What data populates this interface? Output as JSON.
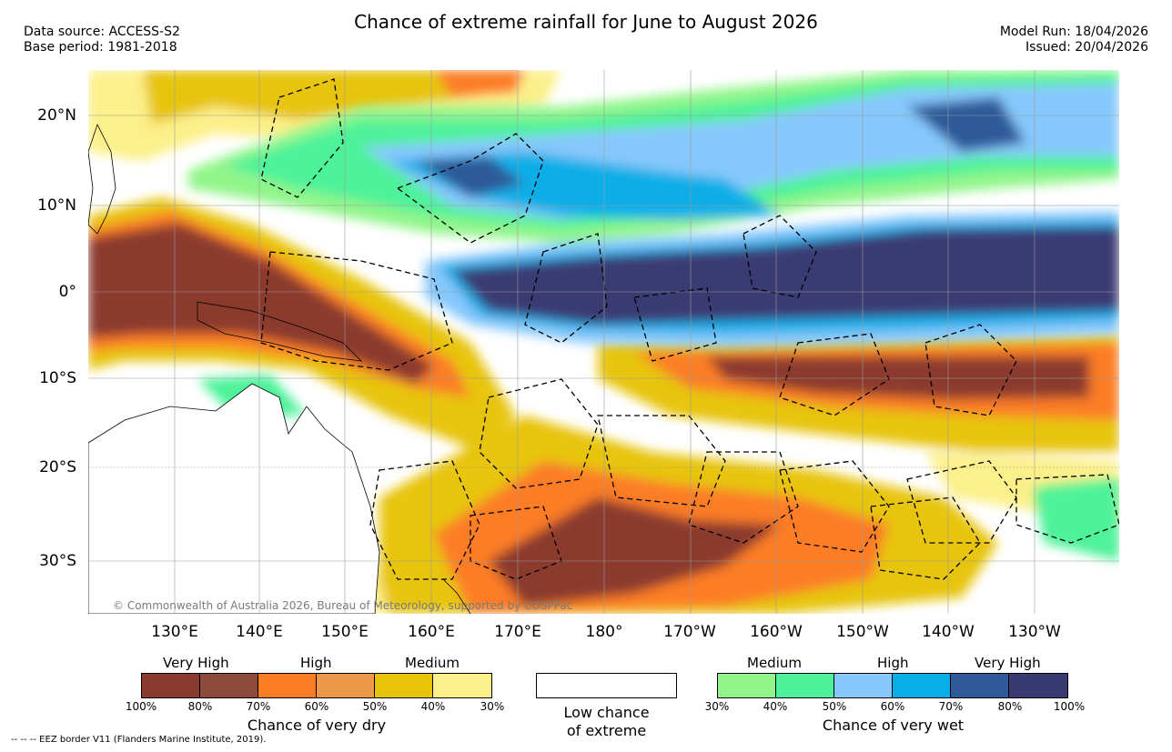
{
  "title": "Chance of extreme rainfall for June to August 2026",
  "data_source": "Data source: ACCESS-S2",
  "base_period": "Base period: 1981-2018",
  "model_run": "Model Run: 18/04/2026",
  "issued": "Issued: 20/04/2026",
  "copyright": "© Commonwealth of Australia 2026, Bureau of Meteorology, supported by COSPPac",
  "footer": "-- -- -- EEZ border V11 (Flanders Marine Institute, 2019).",
  "lat_labels": [
    "20°N",
    "10°N",
    "0°",
    "10°S",
    "20°S",
    "30°S"
  ],
  "lon_labels": [
    "130°E",
    "140°E",
    "150°E",
    "160°E",
    "170°E",
    "180°",
    "170°W",
    "160°W",
    "150°W",
    "140°W",
    "130°W"
  ],
  "dry_legend": {
    "categories": [
      "Very High",
      "High",
      "Medium"
    ],
    "percent_labels": [
      "100%",
      "80%",
      "70%",
      "60%",
      "50%",
      "40%",
      "30%"
    ],
    "colors": [
      "#8b3a2f",
      "#8c4b3c",
      "#fc7d26",
      "#ec9a4a",
      "#e7c40a",
      "#fcf08a"
    ],
    "caption": "Chance of very dry"
  },
  "neutral_legend": {
    "caption_line1": "Low chance",
    "caption_line2": "of extreme"
  },
  "wet_legend": {
    "categories": [
      "Medium",
      "High",
      "Very High"
    ],
    "percent_labels": [
      "30%",
      "40%",
      "50%",
      "60%",
      "70%",
      "80%",
      "100%"
    ],
    "colors": [
      "#91f58a",
      "#4df29a",
      "#86c8fc",
      "#07aee8",
      "#2e5a99",
      "#3a3a73"
    ],
    "caption": "Chance of very wet"
  }
}
